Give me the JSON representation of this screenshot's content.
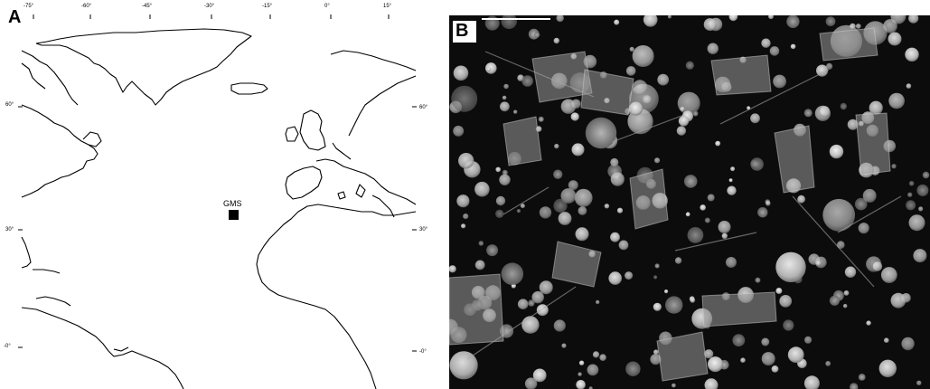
{
  "panel_a": {
    "label": "A",
    "top_ticks": [
      "-75°",
      "-60°",
      "-45°",
      "-30°",
      "-15°",
      "0°",
      "15°"
    ],
    "left_ticks": [
      "60°",
      "30°",
      "-0°"
    ],
    "right_ticks": [
      "60°",
      "30°",
      "-0°"
    ],
    "site_label": "GMS"
  },
  "panel_b": {
    "label": "B"
  },
  "colors": {
    "coastline": "#000000",
    "micrograph_background": "#0c0c0c",
    "particle": "#d8d8d8"
  }
}
